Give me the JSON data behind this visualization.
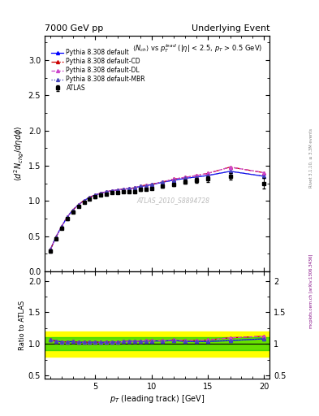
{
  "title_left": "7000 GeV pp",
  "title_right": "Underlying Event",
  "plot_title": "$\\langle N_{ch}\\rangle$ vs $p_T^{lead}$ ($|\\eta|$ < 2.5, $p_T$ > 0.5 GeV)",
  "xlabel": "$p_T$ (leading track) [GeV]",
  "ylabel_main": "$\\langle d^2 N_{chg}/d\\eta d\\phi \\rangle$",
  "ylabel_ratio": "Ratio to ATLAS",
  "watermark": "ATLAS_2010_S8894728",
  "right_label": "mcplots.cern.ch [arXiv:1306.3436]",
  "rivet_label": "Rivet 3.1.10, ≥ 3.3M events",
  "xlim": [
    0.5,
    20.5
  ],
  "ylim_main": [
    0.0,
    3.35
  ],
  "ylim_ratio": [
    0.45,
    2.15
  ],
  "atlas_x": [
    1.0,
    1.5,
    2.0,
    2.5,
    3.0,
    3.5,
    4.0,
    4.5,
    5.0,
    5.5,
    6.0,
    6.5,
    7.0,
    7.5,
    8.0,
    8.5,
    9.0,
    9.5,
    10.0,
    11.0,
    12.0,
    13.0,
    14.0,
    15.0,
    17.0,
    20.0
  ],
  "atlas_y": [
    0.285,
    0.465,
    0.615,
    0.745,
    0.84,
    0.92,
    0.98,
    1.025,
    1.055,
    1.085,
    1.1,
    1.115,
    1.12,
    1.125,
    1.13,
    1.135,
    1.16,
    1.165,
    1.175,
    1.21,
    1.23,
    1.27,
    1.29,
    1.31,
    1.35,
    1.25
  ],
  "atlas_yerr": [
    0.02,
    0.02,
    0.015,
    0.015,
    0.015,
    0.015,
    0.015,
    0.015,
    0.015,
    0.012,
    0.012,
    0.012,
    0.012,
    0.012,
    0.012,
    0.012,
    0.015,
    0.015,
    0.015,
    0.02,
    0.02,
    0.03,
    0.03,
    0.04,
    0.05,
    0.07
  ],
  "py_default_x": [
    1.0,
    1.5,
    2.0,
    2.5,
    3.0,
    3.5,
    4.0,
    4.5,
    5.0,
    5.5,
    6.0,
    6.5,
    7.0,
    7.5,
    8.0,
    8.5,
    9.0,
    9.5,
    10.0,
    11.0,
    12.0,
    13.0,
    14.0,
    15.0,
    17.0,
    20.0
  ],
  "py_default_y": [
    0.305,
    0.485,
    0.635,
    0.77,
    0.87,
    0.945,
    1.005,
    1.05,
    1.085,
    1.11,
    1.13,
    1.145,
    1.155,
    1.165,
    1.175,
    1.185,
    1.205,
    1.215,
    1.23,
    1.265,
    1.295,
    1.32,
    1.34,
    1.36,
    1.42,
    1.35
  ],
  "py_cd_x": [
    1.0,
    1.5,
    2.0,
    2.5,
    3.0,
    3.5,
    4.0,
    4.5,
    5.0,
    5.5,
    6.0,
    6.5,
    7.0,
    7.5,
    8.0,
    8.5,
    9.0,
    9.5,
    10.0,
    11.0,
    12.0,
    13.0,
    14.0,
    15.0,
    17.0,
    20.0
  ],
  "py_cd_y": [
    0.305,
    0.485,
    0.635,
    0.77,
    0.87,
    0.945,
    1.005,
    1.05,
    1.085,
    1.11,
    1.13,
    1.145,
    1.155,
    1.165,
    1.175,
    1.185,
    1.21,
    1.225,
    1.235,
    1.27,
    1.31,
    1.335,
    1.36,
    1.39,
    1.48,
    1.4
  ],
  "py_dl_x": [
    1.0,
    1.5,
    2.0,
    2.5,
    3.0,
    3.5,
    4.0,
    4.5,
    5.0,
    5.5,
    6.0,
    6.5,
    7.0,
    7.5,
    8.0,
    8.5,
    9.0,
    9.5,
    10.0,
    11.0,
    12.0,
    13.0,
    14.0,
    15.0,
    17.0,
    20.0
  ],
  "py_dl_y": [
    0.305,
    0.485,
    0.635,
    0.77,
    0.87,
    0.945,
    1.005,
    1.05,
    1.085,
    1.11,
    1.13,
    1.145,
    1.155,
    1.165,
    1.175,
    1.185,
    1.21,
    1.225,
    1.235,
    1.27,
    1.31,
    1.335,
    1.36,
    1.39,
    1.48,
    1.4
  ],
  "py_mbr_x": [
    1.0,
    1.5,
    2.0,
    2.5,
    3.0,
    3.5,
    4.0,
    4.5,
    5.0,
    5.5,
    6.0,
    6.5,
    7.0,
    7.5,
    8.0,
    8.5,
    9.0,
    9.5,
    10.0,
    11.0,
    12.0,
    13.0,
    14.0,
    15.0,
    17.0,
    20.0
  ],
  "py_mbr_y": [
    0.305,
    0.485,
    0.635,
    0.77,
    0.87,
    0.945,
    1.005,
    1.05,
    1.085,
    1.11,
    1.13,
    1.145,
    1.155,
    1.165,
    1.175,
    1.185,
    1.205,
    1.215,
    1.23,
    1.265,
    1.295,
    1.32,
    1.34,
    1.36,
    1.42,
    1.35
  ],
  "yellow_lo": 0.8,
  "yellow_hi": 1.2,
  "green_lo": 0.9,
  "green_hi": 1.1,
  "color_default": "#0000ff",
  "color_cd": "#cc0000",
  "color_dl": "#cc44cc",
  "color_mbr": "#4444bb",
  "color_atlas": "#000000"
}
